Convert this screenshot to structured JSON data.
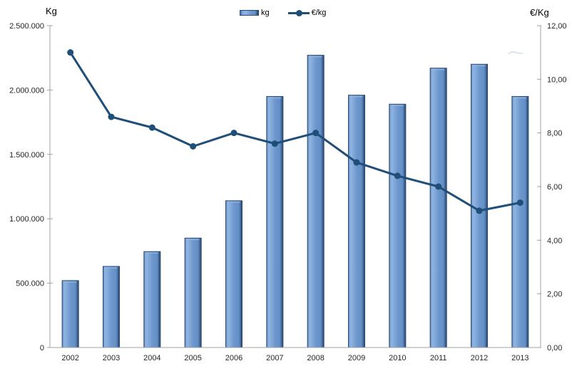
{
  "legend": {
    "kg_label": "kg",
    "eur_label": "€/kg"
  },
  "colors": {
    "bar_fill": "#6e98cd",
    "bar_fill_light": "#8fb4e2",
    "bar_edge": "#2b4a73",
    "line": "#1f4e79",
    "axis_line": "#a0a0a0",
    "tick_text": "#262626",
    "watermark": "#cfdcee"
  },
  "chart_data": {
    "type": "bar",
    "subtype": "combo-bar-line",
    "title": "",
    "legend_position": "top",
    "grid": false,
    "categories": [
      "2002",
      "2003",
      "2004",
      "2005",
      "2006",
      "2007",
      "2008",
      "2009",
      "2010",
      "2011",
      "2012",
      "2013"
    ],
    "series": [
      {
        "name": "kg",
        "type": "bar",
        "axis": "left",
        "values": [
          520000,
          630000,
          745000,
          850000,
          1140000,
          1950000,
          2270000,
          1960000,
          1890000,
          2170000,
          2200000,
          1950000
        ]
      },
      {
        "name": "€/kg",
        "type": "line",
        "axis": "right",
        "values": [
          11.0,
          8.6,
          8.2,
          7.5,
          8.0,
          7.6,
          8.0,
          6.9,
          6.4,
          6.0,
          5.1,
          5.4
        ]
      }
    ],
    "left_axis": {
      "title": "Kg",
      "min": 0,
      "max": 2500000,
      "step": 500000,
      "ticks": [
        {
          "value": 2500000,
          "label": "2.500.000"
        },
        {
          "value": 2000000,
          "label": "2.000.000"
        },
        {
          "value": 1500000,
          "label": "1.500.000"
        },
        {
          "value": 1000000,
          "label": "1.000.000"
        },
        {
          "value": 500000,
          "label": "500.000"
        },
        {
          "value": 0,
          "label": "0"
        }
      ]
    },
    "right_axis": {
      "title": "€/Kg",
      "min": 0,
      "max": 12,
      "step": 2,
      "ticks": [
        {
          "value": 12,
          "label": "12,00"
        },
        {
          "value": 10,
          "label": "10,00"
        },
        {
          "value": 8,
          "label": "8,00"
        },
        {
          "value": 6,
          "label": "6,00"
        },
        {
          "value": 4,
          "label": "4,00"
        },
        {
          "value": 2,
          "label": "2,00"
        },
        {
          "value": 0,
          "label": "0,00"
        }
      ]
    }
  }
}
